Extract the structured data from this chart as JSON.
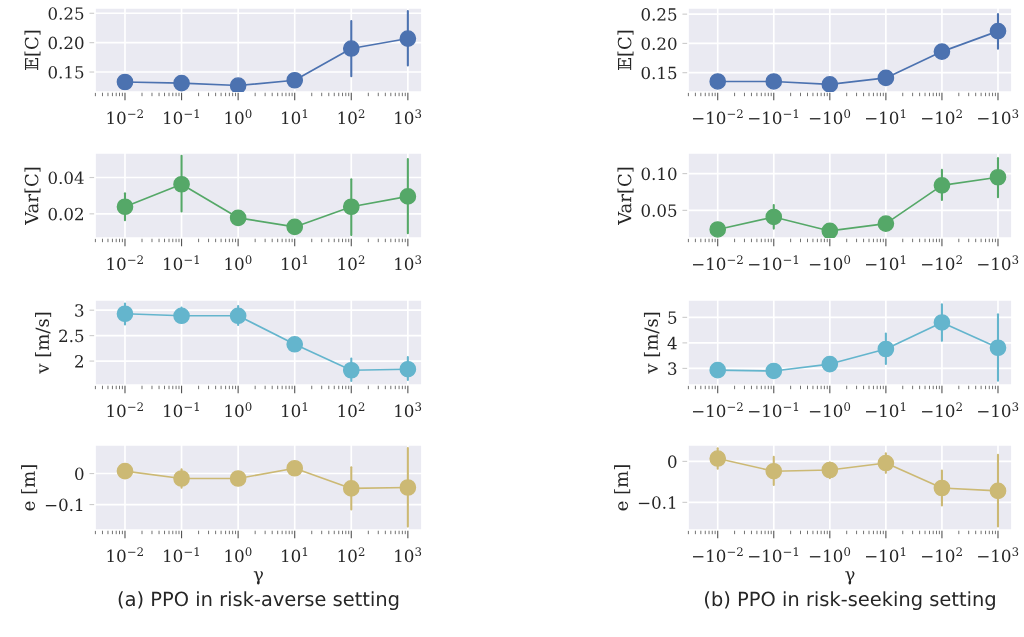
{
  "chart_data": [
    {
      "type": "line",
      "ylabel": "𝔼[C]",
      "categories": [
        "10$^{−2}$",
        "10$^{−1}$",
        "10$^{0}$",
        "10$^{1}$",
        "10$^{2}$",
        "10$^{3}$"
      ],
      "ylim": [
        0.116,
        0.259
      ],
      "yticks": [
        {
          "value": 0.15,
          "label": "0.15"
        },
        {
          "value": 0.2,
          "label": "0.20"
        },
        {
          "value": 0.25,
          "label": "0.25"
        }
      ],
      "grid": true,
      "marker": "circle",
      "line_style": "solid",
      "series": [
        {
          "color": "#4c72b0",
          "values": [
            0.133,
            0.131,
            0.127,
            0.136,
            0.19,
            0.207
          ],
          "errors": [
            null,
            null,
            null,
            null,
            [
              0.143,
              0.237
            ],
            [
              0.161,
              0.254
            ]
          ]
        }
      ]
    },
    {
      "type": "line",
      "ylabel": "Var[C]",
      "categories": [
        "10$^{−2}$",
        "10$^{−1}$",
        "10$^{0}$",
        "10$^{1}$",
        "10$^{2}$",
        "10$^{3}$"
      ],
      "ylim": [
        0.0067,
        0.0535
      ],
      "yticks": [
        {
          "value": 0.02,
          "label": "0.02"
        },
        {
          "value": 0.04,
          "label": "0.04"
        }
      ],
      "grid": true,
      "marker": "circle",
      "line_style": "solid",
      "series": [
        {
          "color": "#55a868",
          "values": [
            0.0239,
            0.0363,
            0.0178,
            0.0128,
            0.0239,
            0.0296
          ],
          "errors": [
            [
              0.0165,
              0.0313
            ],
            [
              0.0213,
              0.052
            ],
            null,
            null,
            [
              0.0083,
              0.039
            ],
            [
              0.0093,
              0.0502
            ]
          ]
        }
      ]
    },
    {
      "type": "line",
      "ylabel": "v [m/s]",
      "categories": [
        "10$^{−2}$",
        "10$^{−1}$",
        "10$^{0}$",
        "10$^{1}$",
        "10$^{2}$",
        "10$^{3}$"
      ],
      "ylim": [
        1.53,
        3.2
      ],
      "yticks": [
        2,
        2.5,
        3
      ],
      "grid": true,
      "marker": "circle",
      "line_style": "solid",
      "series": [
        {
          "color": "#64b5cd",
          "values": [
            2.93,
            2.89,
            2.89,
            2.33,
            1.82,
            1.84
          ],
          "errors": [
            [
              2.72,
              3.13
            ],
            [
              2.76,
              3.05
            ],
            [
              2.71,
              3.08
            ],
            null,
            [
              1.61,
              2.05
            ],
            [
              1.63,
              2.08
            ]
          ]
        }
      ]
    },
    {
      "type": "line",
      "ylabel": "e [m]",
      "xlabel": "γ",
      "categories": [
        "10$^{−2}$",
        "10$^{−1}$",
        "10$^{0}$",
        "10$^{1}$",
        "10$^{2}$",
        "10$^{3}$"
      ],
      "ylim": [
        -0.182,
        0.092
      ],
      "yticks": [
        {
          "value": -0.1,
          "label": "−0.1"
        },
        0
      ],
      "grid": true,
      "marker": "circle",
      "line_style": "solid",
      "series": [
        {
          "color": "#ccb974",
          "values": [
            0.008,
            -0.016,
            -0.016,
            0.017,
            -0.048,
            -0.045
          ],
          "errors": [
            null,
            [
              -0.046,
              0.014
            ],
            null,
            null,
            [
              -0.116,
              0.02
            ],
            [
              -0.171,
              0.082
            ]
          ]
        }
      ],
      "annotations": [
        "(a) PPO in risk-averse setting"
      ]
    },
    {
      "type": "line",
      "ylabel": "𝔼[C]",
      "categories": [
        "−10$^{−2}$",
        "−10$^{−1}$",
        "−10$^{0}$",
        "−10$^{1}$",
        "−10$^{2}$",
        "−10$^{3}$"
      ],
      "ylim": [
        0.117,
        0.2605
      ],
      "yticks": [
        {
          "value": 0.15,
          "label": "0.15"
        },
        {
          "value": 0.2,
          "label": "0.20"
        },
        {
          "value": 0.25,
          "label": "0.25"
        }
      ],
      "grid": true,
      "marker": "circle",
      "line_style": "solid",
      "series": [
        {
          "color": "#4c72b0",
          "values": [
            0.135,
            0.135,
            0.13,
            0.141,
            0.186,
            0.221
          ],
          "errors": [
            null,
            null,
            null,
            null,
            null,
            [
              0.191,
              0.25
            ]
          ]
        }
      ]
    },
    {
      "type": "line",
      "ylabel": "Var[C]",
      "categories": [
        "−10$^{−2}$",
        "−10$^{−1}$",
        "−10$^{0}$",
        "−10$^{1}$",
        "−10$^{2}$",
        "−10$^{3}$"
      ],
      "ylim": [
        0.0124,
        0.128
      ],
      "yticks": [
        {
          "value": 0.05,
          "label": "0.05"
        },
        {
          "value": 0.1,
          "label": "0.10"
        }
      ],
      "grid": true,
      "marker": "circle",
      "line_style": "solid",
      "series": [
        {
          "color": "#55a868",
          "values": [
            0.024,
            0.041,
            0.022,
            0.032,
            0.084,
            0.095
          ],
          "errors": [
            null,
            [
              0.0252,
              0.0573
            ],
            null,
            null,
            [
              0.0642,
              0.105
            ],
            [
              0.0679,
              0.121
            ]
          ]
        }
      ]
    },
    {
      "type": "line",
      "ylabel": "v [m/s]",
      "categories": [
        "−10$^{−2}$",
        "−10$^{−1}$",
        "−10$^{0}$",
        "−10$^{1}$",
        "−10$^{2}$",
        "−10$^{3}$"
      ],
      "ylim": [
        2.35,
        5.68
      ],
      "yticks": [
        3,
        4,
        5
      ],
      "grid": true,
      "marker": "circle",
      "line_style": "solid",
      "series": [
        {
          "color": "#64b5cd",
          "values": [
            2.93,
            2.9,
            3.17,
            3.76,
            4.8,
            3.81
          ],
          "errors": [
            null,
            null,
            null,
            [
              3.17,
              4.37
            ],
            [
              4.08,
              5.51
            ],
            [
              2.52,
              5.12
            ]
          ]
        }
      ]
    },
    {
      "type": "line",
      "ylabel": "e [m]",
      "xlabel": "γ",
      "categories": [
        "−10$^{−2}$",
        "−10$^{−1}$",
        "−10$^{0}$",
        "−10$^{1}$",
        "−10$^{2}$",
        "−10$^{3}$"
      ],
      "ylim": [
        -0.1675,
        0.04
      ],
      "yticks": [
        {
          "value": -0.1,
          "label": "−0.1"
        },
        0
      ],
      "grid": true,
      "marker": "circle",
      "line_style": "solid",
      "series": [
        {
          "color": "#ccb974",
          "values": [
            0.007,
            -0.024,
            -0.021,
            -0.004,
            -0.065,
            -0.072
          ],
          "errors": [
            [
              -0.018,
              0.032
            ],
            [
              -0.0575,
              0.011
            ],
            [
              -0.041,
              -0.003
            ],
            [
              -0.028,
              0.02
            ],
            [
              -0.1075,
              -0.0225
            ],
            [
              -0.159,
              0.016
            ]
          ]
        }
      ],
      "annotations": [
        "(b) PPO in risk-seeking setting"
      ]
    }
  ]
}
